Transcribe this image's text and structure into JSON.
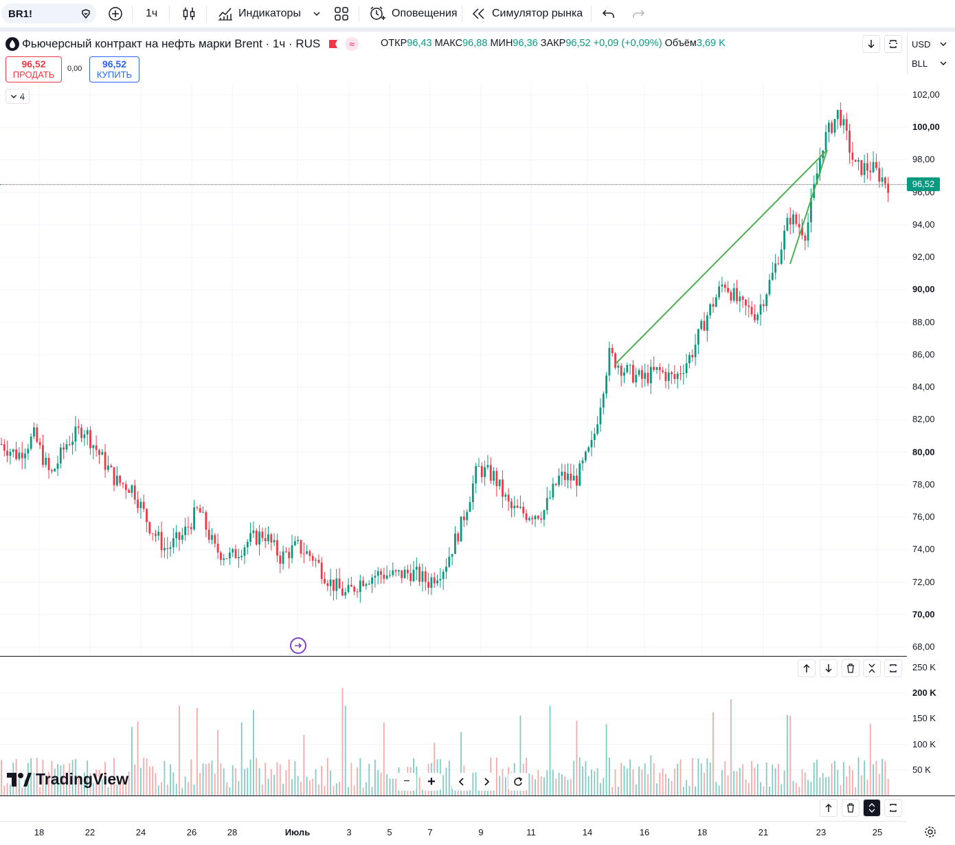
{
  "toolbar": {
    "symbol": "BR1!",
    "interval": "1ч",
    "indicators_label": "Индикаторы",
    "alerts_label": "Оповещения",
    "replay_label": "Симулятор рынка"
  },
  "legend": {
    "title": "Фьючерсный контракт на нефть марки Brent · 1ч · RUS",
    "open_label": "ОТКР",
    "open": "96,43",
    "high_label": "МАКС",
    "high": "96,88",
    "low_label": "МИН",
    "low": "96,36",
    "close_label": "ЗАКР",
    "close": "96,52",
    "change": "+0,09 (+0,09%)",
    "volume_label": "Объём",
    "volume": "3,69 K"
  },
  "trade": {
    "sell_price": "96,52",
    "sell_label": "ПРОДАТЬ",
    "spread": "0,00",
    "buy_price": "96,52",
    "buy_label": "КУПИТЬ",
    "collapsed_count": "4"
  },
  "scale": {
    "currency": "USD",
    "unit": "BLL"
  },
  "current_price": "96,52",
  "logo_text": "TradingView",
  "colors": {
    "up": "#089981",
    "down": "#f23645",
    "drawing": "#4caf50",
    "accent": "#2962ff"
  },
  "chart_data": {
    "type": "candlestick",
    "price_axis": [
      "102,00",
      "100,00",
      "98,00",
      "96,00",
      "94,00",
      "92,00",
      "90,00",
      "88,00",
      "86,00",
      "84,00",
      "82,00",
      "80,00",
      "78,00",
      "76,00",
      "74,00",
      "72,00",
      "70,00",
      "68,00"
    ],
    "volume_axis": [
      "250 K",
      "200 K",
      "150 K",
      "100 K",
      "50 K"
    ],
    "date_axis": [
      "18",
      "22",
      "24",
      "26",
      "28",
      "Июль",
      "3",
      "5",
      "7",
      "9",
      "11",
      "14",
      "16",
      "18",
      "21",
      "23",
      "25"
    ],
    "ylim": [
      68,
      102
    ],
    "approx_close_path": [
      80.5,
      79.8,
      81.0,
      78.5,
      80.6,
      81.5,
      79.8,
      78.2,
      77.8,
      75.5,
      74.0,
      74.8,
      76.5,
      74.0,
      73.5,
      74.5,
      75.0,
      73.5,
      74.2,
      73.5,
      72.0,
      71.2,
      72.2,
      72.5,
      72.4,
      72.6,
      72.0,
      73.0,
      75.5,
      79.0,
      78.5,
      76.5,
      76.2,
      76.3,
      78.5,
      78.3,
      80.5,
      86.0,
      85.0,
      84.5,
      85.0,
      84.5,
      86.0,
      88.5,
      90.5,
      89.0,
      88.5,
      91.0,
      94.5,
      93.5,
      99.0,
      101.0,
      97.5,
      97.5,
      96.5
    ]
  }
}
